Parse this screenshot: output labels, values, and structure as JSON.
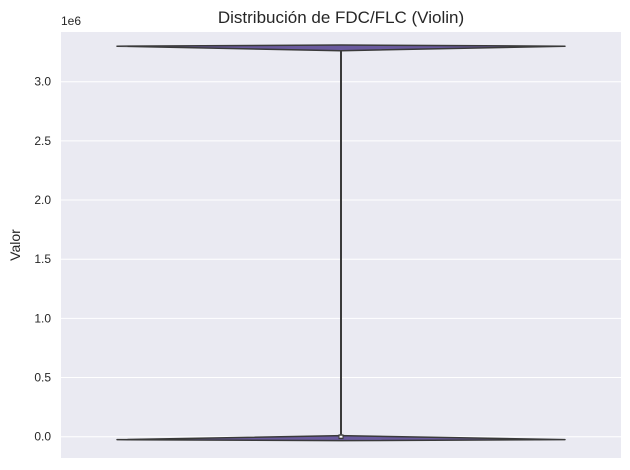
{
  "chart_data": {
    "type": "violin",
    "title": "Distribución de FDC/FLC (Violin)",
    "xlabel": "",
    "ylabel": "Valor",
    "y_offset_label": "1e6",
    "ylim": [
      -0.18,
      3.42
    ],
    "yticks": [
      0.0,
      0.5,
      1.0,
      1.5,
      2.0,
      2.5,
      3.0
    ],
    "ytick_labels": [
      "0.0",
      "0.5",
      "1.0",
      "1.5",
      "2.0",
      "2.5",
      "3.0"
    ],
    "grid": true,
    "series": [
      {
        "clusters": [
          -0.025,
          3.3
        ],
        "min": -0.025,
        "q1": -0.02,
        "median": 0.0,
        "q3": 0.02,
        "max": 3.3
      }
    ],
    "colors": {
      "background": "#eaeaf2",
      "grid": "#ffffff",
      "violin_fill": "#6a5a9e",
      "outline": "#3a3a3a"
    }
  }
}
